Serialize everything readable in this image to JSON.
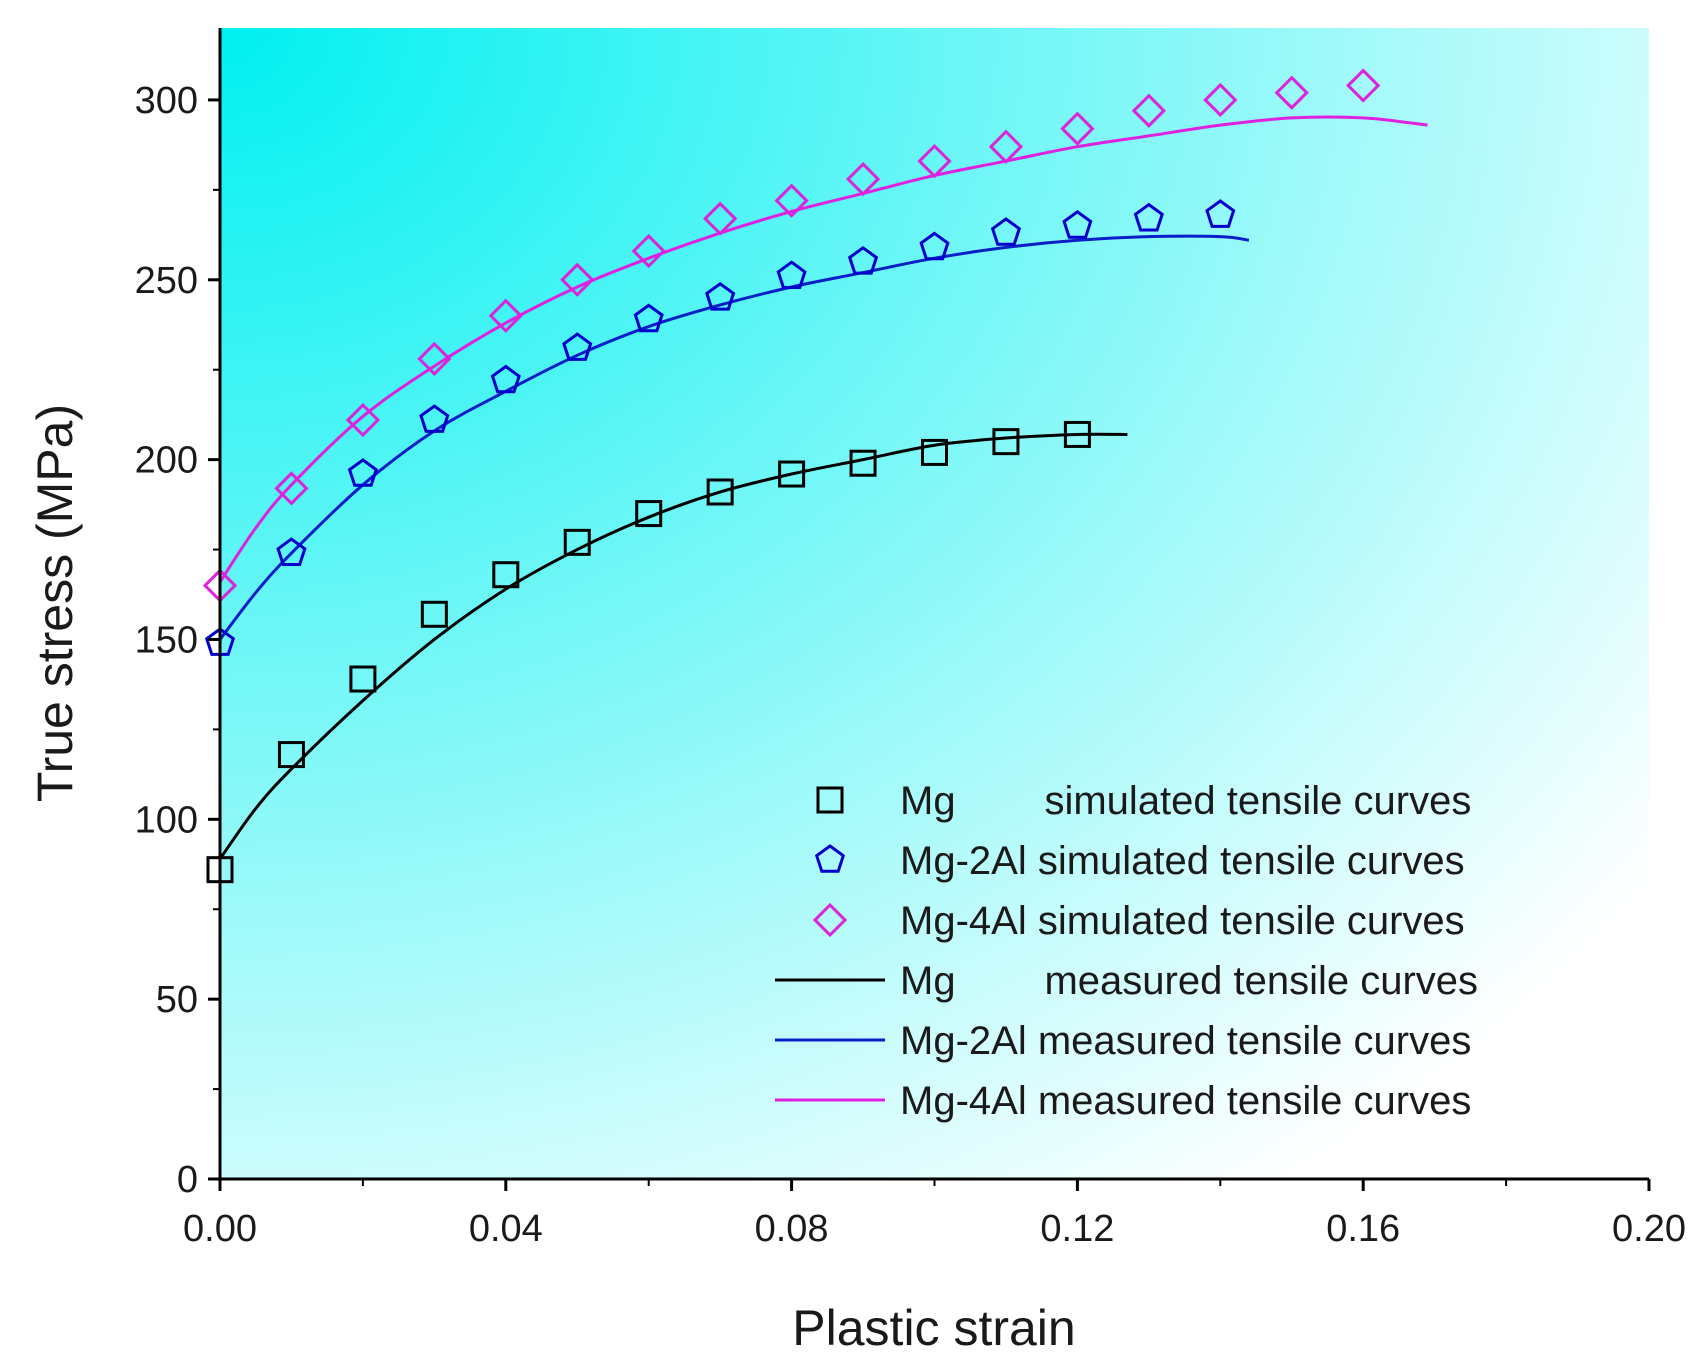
{
  "chart_data": {
    "type": "line",
    "title": "",
    "xlabel": "Plastic strain",
    "ylabel": "True stress (MPa)",
    "xlim": [
      0.0,
      0.2
    ],
    "ylim": [
      0,
      320
    ],
    "x_ticks": [
      "0.00",
      "0.04",
      "0.08",
      "0.12",
      "0.16",
      "0.20"
    ],
    "x_tick_values": [
      0.0,
      0.04,
      0.08,
      0.12,
      0.16,
      0.2
    ],
    "y_ticks": [
      "0",
      "50",
      "100",
      "150",
      "200",
      "250",
      "300"
    ],
    "y_tick_values": [
      0,
      50,
      100,
      150,
      200,
      250,
      300
    ],
    "grid": false,
    "legend_position": "bottom-right",
    "background_gradient": [
      "#00f0f0",
      "#ffffff"
    ],
    "series": [
      {
        "name": "Mg",
        "legend_label": "Mg        simulated tensile curves",
        "kind": "scatter",
        "marker": "square",
        "color": "#000000",
        "x": [
          0.0,
          0.01,
          0.02,
          0.03,
          0.04,
          0.05,
          0.06,
          0.07,
          0.08,
          0.09,
          0.1,
          0.11,
          0.12
        ],
        "y": [
          86,
          118,
          139,
          157,
          168,
          177,
          185,
          191,
          196,
          199,
          202,
          205,
          207
        ]
      },
      {
        "name": "Mg-2Al",
        "legend_label": "Mg-2Al simulated tensile curves",
        "kind": "scatter",
        "marker": "pentagon",
        "color": "#0000cc",
        "x": [
          0.0,
          0.01,
          0.02,
          0.03,
          0.04,
          0.05,
          0.06,
          0.07,
          0.08,
          0.09,
          0.1,
          0.11,
          0.12,
          0.13,
          0.14
        ],
        "y": [
          149,
          174,
          196,
          211,
          222,
          231,
          239,
          245,
          251,
          255,
          259,
          263,
          265,
          267,
          268
        ]
      },
      {
        "name": "Mg-4Al",
        "legend_label": "Mg-4Al simulated tensile curves",
        "kind": "scatter",
        "marker": "diamond",
        "color": "#dd22dd",
        "x": [
          0.0,
          0.01,
          0.02,
          0.03,
          0.04,
          0.05,
          0.06,
          0.07,
          0.08,
          0.09,
          0.1,
          0.11,
          0.12,
          0.13,
          0.14,
          0.15,
          0.16
        ],
        "y": [
          165,
          192,
          211,
          228,
          240,
          250,
          258,
          267,
          272,
          278,
          283,
          287,
          292,
          297,
          300,
          302,
          304
        ]
      },
      {
        "name": "Mg",
        "legend_label": "Mg        measured tensile curves",
        "kind": "line",
        "color": "#000000",
        "x": [
          0.0,
          0.005,
          0.01,
          0.02,
          0.03,
          0.04,
          0.05,
          0.06,
          0.07,
          0.08,
          0.09,
          0.1,
          0.11,
          0.12,
          0.127
        ],
        "y": [
          89,
          103,
          114,
          133,
          150,
          164,
          175,
          184,
          191,
          196,
          200,
          204,
          206,
          207,
          207
        ]
      },
      {
        "name": "Mg-2Al",
        "legend_label": "Mg-2Al measured tensile curves",
        "kind": "line",
        "color": "#0a1fc8",
        "x": [
          0.0,
          0.005,
          0.01,
          0.02,
          0.03,
          0.04,
          0.05,
          0.06,
          0.07,
          0.08,
          0.09,
          0.1,
          0.11,
          0.12,
          0.13,
          0.14,
          0.144
        ],
        "y": [
          150,
          163,
          174,
          193,
          208,
          219,
          229,
          237,
          243,
          248,
          252,
          256,
          259,
          261,
          262,
          262,
          261
        ]
      },
      {
        "name": "Mg-4Al",
        "legend_label": "Mg-4Al measured tensile curves",
        "kind": "line",
        "color": "#e020e0",
        "x": [
          0.0,
          0.005,
          0.01,
          0.02,
          0.03,
          0.04,
          0.05,
          0.06,
          0.07,
          0.08,
          0.09,
          0.1,
          0.11,
          0.12,
          0.13,
          0.14,
          0.15,
          0.16,
          0.169
        ],
        "y": [
          166,
          181,
          193,
          212,
          226,
          238,
          248,
          256,
          263,
          269,
          274,
          279,
          283,
          287,
          290,
          293,
          295,
          295,
          293
        ]
      }
    ]
  }
}
